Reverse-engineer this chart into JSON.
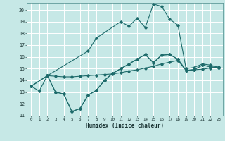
{
  "background_color": "#c6e8e6",
  "grid_color": "#ffffff",
  "line_color": "#1e6b6b",
  "xlabel": "Humidex (Indice chaleur)",
  "xlim": [
    -0.5,
    23.5
  ],
  "ylim": [
    11,
    20.6
  ],
  "yticks": [
    11,
    12,
    13,
    14,
    15,
    16,
    17,
    18,
    19,
    20
  ],
  "xticks": [
    0,
    1,
    2,
    3,
    4,
    5,
    6,
    7,
    8,
    9,
    10,
    11,
    12,
    13,
    14,
    15,
    16,
    17,
    18,
    19,
    20,
    21,
    22,
    23
  ],
  "lineA_x": [
    0,
    2,
    7,
    8,
    11,
    12,
    13,
    14,
    15,
    16,
    17,
    18,
    19,
    20,
    21,
    22,
    23
  ],
  "lineA_y": [
    13.5,
    14.4,
    16.5,
    17.6,
    19.0,
    18.6,
    19.3,
    18.5,
    20.5,
    20.3,
    19.2,
    18.7,
    15.0,
    15.1,
    15.4,
    15.3,
    15.1
  ],
  "lineB_x": [
    0,
    2,
    3,
    4,
    5,
    6,
    7,
    8,
    9,
    10,
    11,
    12,
    13,
    14,
    15,
    16,
    17,
    18,
    19,
    20,
    21,
    22,
    23
  ],
  "lineB_y": [
    13.5,
    14.4,
    14.35,
    14.3,
    14.3,
    14.35,
    14.4,
    14.45,
    14.5,
    14.55,
    14.65,
    14.8,
    14.9,
    15.05,
    15.2,
    15.4,
    15.55,
    15.7,
    14.85,
    14.9,
    14.95,
    15.05,
    15.15
  ],
  "lineC_x": [
    0,
    1,
    2,
    3,
    4,
    5,
    6,
    7,
    8,
    9,
    10,
    11,
    12,
    13,
    14,
    15,
    16,
    17,
    18,
    19,
    20,
    21,
    22,
    23
  ],
  "lineC_y": [
    13.5,
    13.1,
    14.4,
    13.0,
    12.85,
    11.35,
    11.6,
    12.75,
    13.15,
    14.0,
    14.6,
    15.0,
    15.4,
    15.8,
    16.2,
    15.5,
    16.15,
    16.2,
    15.8,
    14.85,
    14.9,
    15.3,
    15.15,
    15.1
  ],
  "lineD_x": [
    2,
    3,
    4,
    5,
    6,
    7,
    8,
    9,
    10,
    11,
    12,
    13,
    14,
    15,
    16,
    17,
    18,
    19,
    20,
    21,
    22,
    23
  ],
  "lineD_y": [
    14.4,
    13.0,
    12.85,
    11.35,
    11.6,
    12.75,
    13.15,
    14.0,
    14.6,
    15.0,
    15.4,
    15.8,
    16.2,
    15.5,
    16.15,
    16.2,
    15.8,
    14.85,
    14.9,
    15.3,
    15.15,
    15.1
  ]
}
